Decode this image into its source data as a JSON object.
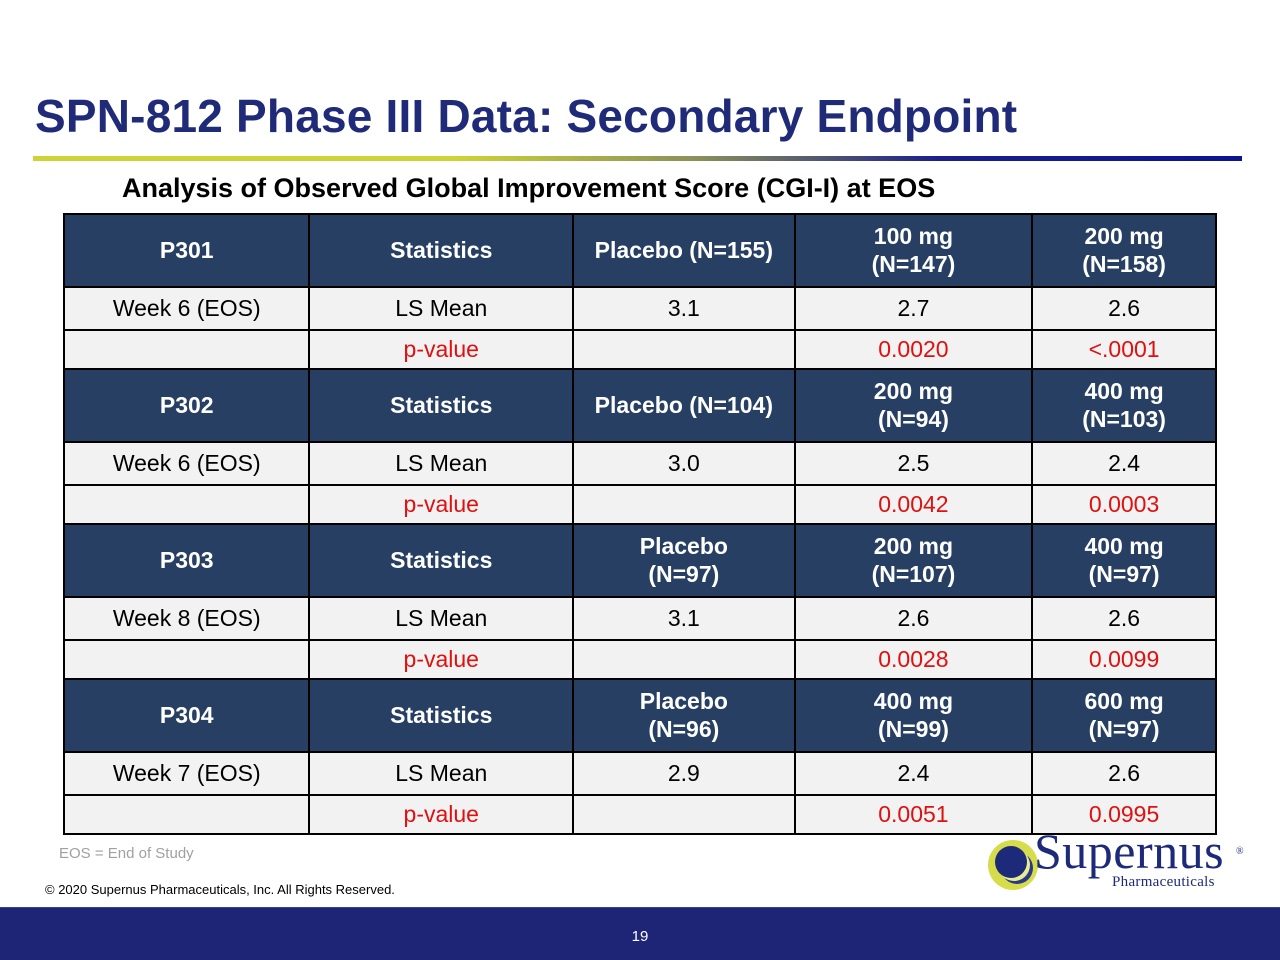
{
  "slide": {
    "title": "SPN-812 Phase III Data: Secondary Endpoint",
    "subtitle": "Analysis of Observed Global Improvement Score (CGI-I) at EOS"
  },
  "table": {
    "groups": [
      {
        "header": [
          "P301",
          "Statistics",
          "Placebo (N=155)",
          "100 mg\n(N=147)",
          "200 mg\n(N=158)"
        ],
        "header_lines": [
          [
            "P301"
          ],
          [
            "Statistics"
          ],
          [
            "Placebo (N=155)"
          ],
          [
            "100 mg",
            "(N=147)"
          ],
          [
            "200 mg",
            "(N=158)"
          ]
        ],
        "mean_row": [
          "Week 6 (EOS)",
          "LS Mean",
          "3.1",
          "2.7",
          "2.6"
        ],
        "pvalue_row": [
          "",
          "p-value",
          "",
          "0.0020",
          "<.0001"
        ]
      },
      {
        "header": [
          "P302",
          "Statistics",
          "Placebo (N=104)",
          "200 mg\n(N=94)",
          "400 mg\n(N=103)"
        ],
        "header_lines": [
          [
            "P302"
          ],
          [
            "Statistics"
          ],
          [
            "Placebo (N=104)"
          ],
          [
            "200 mg",
            "(N=94)"
          ],
          [
            "400 mg",
            "(N=103)"
          ]
        ],
        "mean_row": [
          "Week 6 (EOS)",
          "LS Mean",
          "3.0",
          "2.5",
          "2.4"
        ],
        "pvalue_row": [
          "",
          "p-value",
          "",
          "0.0042",
          "0.0003"
        ]
      },
      {
        "header": [
          "P303",
          "Statistics",
          "Placebo\n(N=97)",
          "200 mg\n(N=107)",
          "400 mg\n(N=97)"
        ],
        "header_lines": [
          [
            "P303"
          ],
          [
            "Statistics"
          ],
          [
            "Placebo",
            "(N=97)"
          ],
          [
            "200 mg",
            "(N=107)"
          ],
          [
            "400 mg",
            "(N=97)"
          ]
        ],
        "mean_row": [
          "Week 8 (EOS)",
          "LS Mean",
          "3.1",
          "2.6",
          "2.6"
        ],
        "pvalue_row": [
          "",
          "p-value",
          "",
          "0.0028",
          "0.0099"
        ]
      },
      {
        "header": [
          "P304",
          "Statistics",
          "Placebo\n(N=96)",
          "400 mg\n(N=99)",
          "600 mg\n(N=97)"
        ],
        "header_lines": [
          [
            "P304"
          ],
          [
            "Statistics"
          ],
          [
            "Placebo",
            "(N=96)"
          ],
          [
            "400 mg",
            "(N=99)"
          ],
          [
            "600 mg",
            "(N=97)"
          ]
        ],
        "mean_row": [
          "Week 7 (EOS)",
          "LS Mean",
          "2.9",
          "2.4",
          "2.6"
        ],
        "pvalue_row": [
          "",
          "p-value",
          "",
          "0.0051",
          "0.0995"
        ]
      }
    ]
  },
  "footnote": "EOS = End of Study",
  "copyright": "© 2020 Supernus Pharmaceuticals, Inc. All Rights Reserved.",
  "logo": {
    "wordmark": "Supernus",
    "registered": "®",
    "tagline": "Pharmaceuticals"
  },
  "footer": {
    "page_number": "19"
  },
  "colors": {
    "title": "#1f2a78",
    "header_fill": "#263f62",
    "cell_fill": "#f2f2f2",
    "pvalue_text": "#e01010",
    "footer_bar": "#1f2576",
    "rule_start": "#cdd435",
    "rule_end": "#0c1490"
  }
}
